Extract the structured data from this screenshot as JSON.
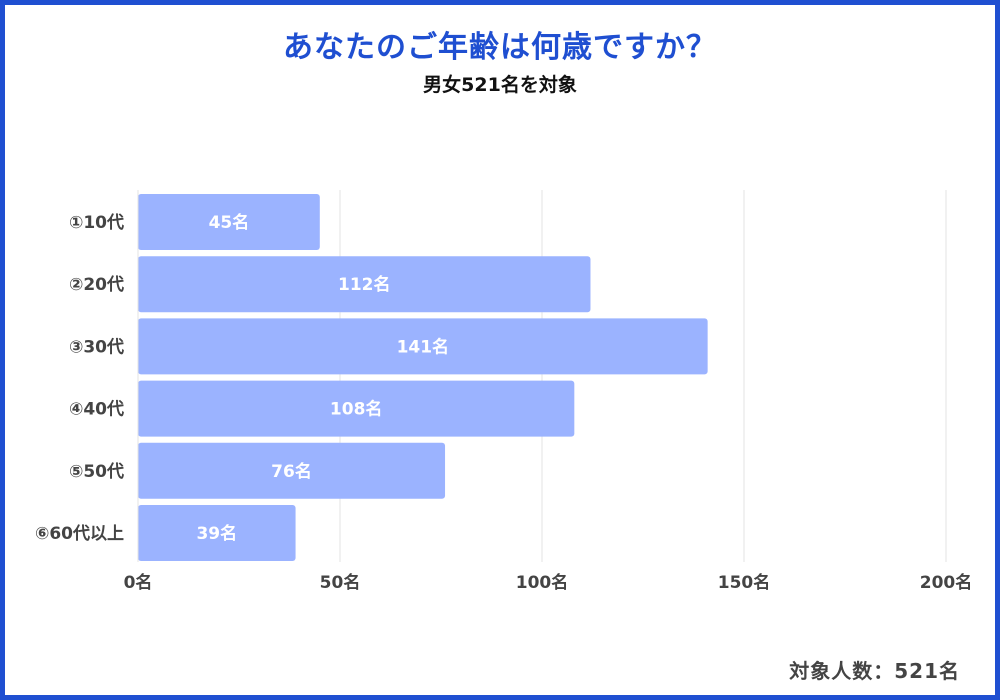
{
  "title": "あなたのご年齢は何歳ですか？",
  "subtitle": "男女521名を対象",
  "footer": "対象人数：521名",
  "colors": {
    "frame": "#1f4fd1",
    "title": "#1f4fd1",
    "bar": "#9bb3ff",
    "grid": "#e3e3e3",
    "bar_label": "#ffffff"
  },
  "chart_data": {
    "type": "bar",
    "orientation": "horizontal",
    "categories": [
      "①10代",
      "②20代",
      "③30代",
      "④40代",
      "⑤50代",
      "⑥60代以上"
    ],
    "values": [
      45,
      112,
      141,
      108,
      76,
      39
    ],
    "value_labels": [
      "45名",
      "112名",
      "141名",
      "108名",
      "76名",
      "39名"
    ],
    "xlim": [
      0,
      200
    ],
    "x_ticks": [
      0,
      50,
      100,
      150,
      200
    ],
    "x_tick_labels": [
      "0名",
      "50名",
      "100名",
      "150名",
      "200名"
    ],
    "grid": true
  }
}
